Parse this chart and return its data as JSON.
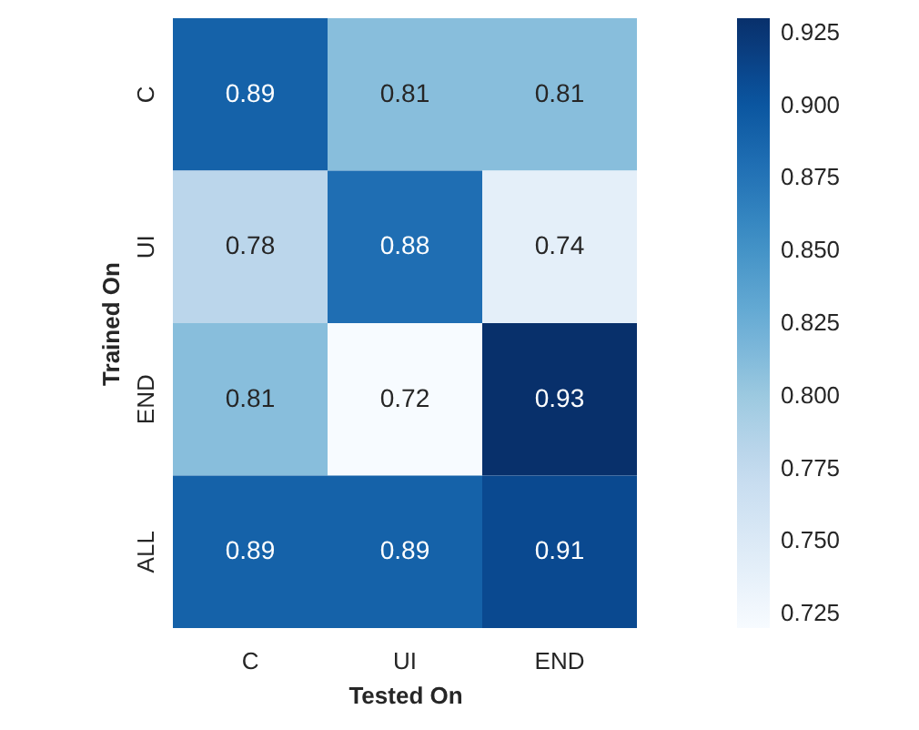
{
  "chart_data": {
    "type": "heatmap",
    "xlabel": "Tested On",
    "ylabel": "Trained On",
    "categories": [
      "C",
      "UI",
      "END"
    ],
    "y_categories": [
      "C",
      "UI",
      "END",
      "ALL"
    ],
    "cells": [
      [
        0.89,
        0.81,
        0.81
      ],
      [
        0.78,
        0.88,
        0.74
      ],
      [
        0.81,
        0.72,
        0.93
      ],
      [
        0.89,
        0.89,
        0.91
      ]
    ],
    "clim": [
      0.72,
      0.93
    ],
    "cticks": [
      0.725,
      {
        "value": 0.75,
        "label": "0.750"
      },
      0.775,
      {
        "value": 0.8,
        "label": "0.800"
      },
      0.825,
      {
        "value": 0.85,
        "label": "0.850"
      },
      0.875,
      {
        "value": 0.9,
        "label": "0.900"
      },
      0.925
    ],
    "data_labels": true,
    "grid": false
  }
}
